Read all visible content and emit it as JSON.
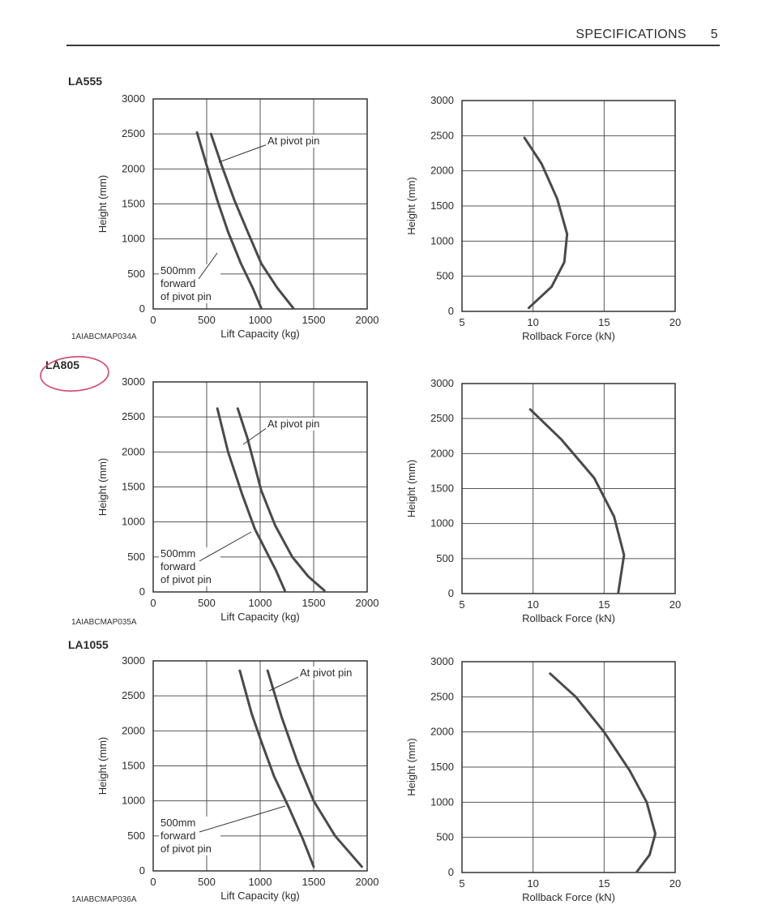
{
  "header": {
    "section": "SPECIFICATIONS",
    "page": "5"
  },
  "models": [
    {
      "name": "LA555",
      "code": "1AIABCMAP034A"
    },
    {
      "name": "LA805",
      "code": "1AIABCMAP035A"
    },
    {
      "name": "LA1055",
      "code": "1AIABCMAP036A"
    }
  ],
  "labels": {
    "height": "Height (mm)",
    "lift": "Lift Capacity (kg)",
    "rollback": "Rollback Force (kN)",
    "pivot": "At pivot pin",
    "fwd1": "500mm",
    "fwd2": "forward",
    "fwd3": "of pivot pin"
  },
  "chart_data": [
    {
      "type": "line",
      "model": "LA555",
      "xlabel": "Lift Capacity (kg)",
      "ylabel": "Height (mm)",
      "xlim": [
        0,
        2000
      ],
      "ylim": [
        0,
        3000
      ],
      "xticks": [
        0,
        500,
        1000,
        1500,
        2000
      ],
      "yticks": [
        0,
        500,
        1000,
        1500,
        2000,
        2500,
        3000
      ],
      "series": [
        {
          "name": "At pivot pin",
          "points": [
            [
              540,
              2500
            ],
            [
              640,
              2050
            ],
            [
              760,
              1550
            ],
            [
              870,
              1150
            ],
            [
              1010,
              650
            ],
            [
              1160,
              300
            ],
            [
              1310,
              10
            ]
          ]
        },
        {
          "name": "500mm forward of pivot pin",
          "points": [
            [
              410,
              2520
            ],
            [
              500,
              2050
            ],
            [
              600,
              1550
            ],
            [
              700,
              1100
            ],
            [
              820,
              650
            ],
            [
              930,
              300
            ],
            [
              1010,
              10
            ]
          ]
        }
      ]
    },
    {
      "type": "line",
      "model": "LA555",
      "xlabel": "Rollback Force (kN)",
      "ylabel": "Height (mm)",
      "xlim": [
        5,
        20
      ],
      "ylim": [
        0,
        3000
      ],
      "xticks": [
        5,
        10,
        15,
        20
      ],
      "yticks": [
        0,
        500,
        1000,
        1500,
        2000,
        2500,
        3000
      ],
      "series": [
        {
          "name": "",
          "points": [
            [
              9.4,
              2470
            ],
            [
              10.6,
              2100
            ],
            [
              11.7,
              1600
            ],
            [
              12.4,
              1100
            ],
            [
              12.2,
              700
            ],
            [
              11.3,
              350
            ],
            [
              9.7,
              50
            ]
          ]
        }
      ]
    },
    {
      "type": "line",
      "model": "LA805",
      "xlabel": "Lift Capacity (kg)",
      "ylabel": "Height (mm)",
      "xlim": [
        0,
        2000
      ],
      "ylim": [
        0,
        3000
      ],
      "xticks": [
        0,
        500,
        1000,
        1500,
        2000
      ],
      "yticks": [
        0,
        500,
        1000,
        1500,
        2000,
        2500,
        3000
      ],
      "series": [
        {
          "name": "At pivot pin",
          "points": [
            [
              790,
              2620
            ],
            [
              880,
              2200
            ],
            [
              1010,
              1450
            ],
            [
              1140,
              950
            ],
            [
              1300,
              500
            ],
            [
              1450,
              220
            ],
            [
              1600,
              20
            ]
          ]
        },
        {
          "name": "500mm forward of pivot pin",
          "points": [
            [
              600,
              2620
            ],
            [
              700,
              2000
            ],
            [
              830,
              1400
            ],
            [
              950,
              900
            ],
            [
              1050,
              600
            ],
            [
              1150,
              300
            ],
            [
              1230,
              20
            ]
          ]
        }
      ]
    },
    {
      "type": "line",
      "model": "LA805",
      "xlabel": "Rollback Force (kN)",
      "ylabel": "Height (mm)",
      "xlim": [
        5,
        20
      ],
      "ylim": [
        0,
        3000
      ],
      "xticks": [
        5,
        10,
        15,
        20
      ],
      "yticks": [
        0,
        500,
        1000,
        1500,
        2000,
        2500,
        3000
      ],
      "series": [
        {
          "name": "",
          "points": [
            [
              9.8,
              2630
            ],
            [
              12.0,
              2200
            ],
            [
              14.3,
              1650
            ],
            [
              15.7,
              1100
            ],
            [
              16.4,
              550
            ],
            [
              16.0,
              20
            ]
          ]
        }
      ]
    },
    {
      "type": "line",
      "model": "LA1055",
      "xlabel": "Lift Capacity (kg)",
      "ylabel": "Height (mm)",
      "xlim": [
        0,
        2000
      ],
      "ylim": [
        0,
        3000
      ],
      "xticks": [
        0,
        500,
        1000,
        1500,
        2000
      ],
      "yticks": [
        0,
        500,
        1000,
        1500,
        2000,
        2500,
        3000
      ],
      "series": [
        {
          "name": "At pivot pin",
          "points": [
            [
              1070,
              2860
            ],
            [
              1200,
              2200
            ],
            [
              1350,
              1550
            ],
            [
              1500,
              1000
            ],
            [
              1700,
              500
            ],
            [
              1950,
              60
            ]
          ]
        },
        {
          "name": "500mm forward of pivot pin",
          "points": [
            [
              810,
              2860
            ],
            [
              920,
              2250
            ],
            [
              1010,
              1850
            ],
            [
              1130,
              1350
            ],
            [
              1270,
              900
            ],
            [
              1400,
              450
            ],
            [
              1500,
              60
            ]
          ]
        }
      ]
    },
    {
      "type": "line",
      "model": "LA1055",
      "xlabel": "Rollback Force (kN)",
      "ylabel": "Height (mm)",
      "xlim": [
        5,
        20
      ],
      "ylim": [
        0,
        3000
      ],
      "xticks": [
        5,
        10,
        15,
        20
      ],
      "yticks": [
        0,
        500,
        1000,
        1500,
        2000,
        2500,
        3000
      ],
      "series": [
        {
          "name": "",
          "points": [
            [
              11.2,
              2830
            ],
            [
              13.0,
              2500
            ],
            [
              15.0,
              2000
            ],
            [
              16.8,
              1450
            ],
            [
              18.0,
              1000
            ],
            [
              18.6,
              550
            ],
            [
              18.2,
              250
            ],
            [
              17.3,
              10
            ]
          ]
        }
      ]
    }
  ]
}
